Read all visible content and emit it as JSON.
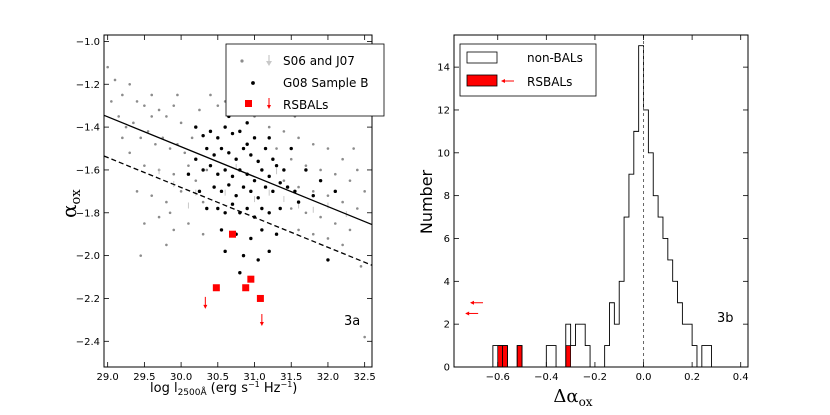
{
  "chart_data": [
    {
      "type": "scatter",
      "panel_label": "3a",
      "xlabel": "log l",
      "xlabel_sub": "2500Å",
      "xlabel_units": "(erg s",
      "xlabel_units_exp1": "−1",
      "xlabel_units_mid": " Hz",
      "xlabel_units_exp2": "−1",
      "xlabel_units_end": ")",
      "ylabel": "α",
      "ylabel_sub": "ox",
      "xlim": [
        28.95,
        32.6
      ],
      "ylim": [
        -2.52,
        -0.97
      ],
      "xticks": [
        "29.0",
        "29.5",
        "30.0",
        "30.5",
        "31.0",
        "31.5",
        "32.0",
        "32.5"
      ],
      "xtick_values": [
        29.0,
        29.5,
        30.0,
        30.5,
        31.0,
        31.5,
        32.0,
        32.5
      ],
      "yticks": [
        "−1.0",
        "−1.2",
        "−1.4",
        "−1.6",
        "−1.8",
        "−2.0",
        "−2.2",
        "−2.4"
      ],
      "ytick_values": [
        -1.0,
        -1.2,
        -1.4,
        -1.6,
        -1.8,
        -2.0,
        -2.2,
        -2.4
      ],
      "legend": [
        {
          "label": "S06 and J07",
          "marker": "gray-dot-with-arrow"
        },
        {
          "label": "G08 Sample B",
          "marker": "black-dot"
        },
        {
          "label": "RSBALs",
          "marker": "red-square-with-arrow"
        }
      ],
      "lines": [
        {
          "style": "solid",
          "x": [
            28.95,
            32.6
          ],
          "y": [
            -1.345,
            -1.855
          ]
        },
        {
          "style": "dashed",
          "x": [
            28.95,
            32.6
          ],
          "y": [
            -1.535,
            -2.045
          ]
        }
      ],
      "rsbals": [
        {
          "x": 30.7,
          "y": -1.9
        },
        {
          "x": 30.48,
          "y": -2.15
        },
        {
          "x": 30.88,
          "y": -2.15
        },
        {
          "x": 30.95,
          "y": -2.11
        },
        {
          "x": 31.08,
          "y": -2.2
        }
      ],
      "rsbal_upper_limits": [
        {
          "x": 30.33,
          "y": -2.23
        },
        {
          "x": 31.1,
          "y": -2.31
        }
      ],
      "g08_points": [
        [
          30.2,
          -1.4
        ],
        [
          30.3,
          -1.44
        ],
        [
          30.4,
          -1.42
        ],
        [
          30.5,
          -1.45
        ],
        [
          30.6,
          -1.4
        ],
        [
          30.7,
          -1.43
        ],
        [
          30.8,
          -1.42
        ],
        [
          30.9,
          -1.48
        ],
        [
          31.0,
          -1.45
        ],
        [
          30.35,
          -1.5
        ],
        [
          30.45,
          -1.53
        ],
        [
          30.55,
          -1.5
        ],
        [
          30.65,
          -1.52
        ],
        [
          30.75,
          -1.55
        ],
        [
          30.85,
          -1.5
        ],
        [
          30.95,
          -1.53
        ],
        [
          31.05,
          -1.56
        ],
        [
          31.15,
          -1.5
        ],
        [
          31.25,
          -1.55
        ],
        [
          30.3,
          -1.6
        ],
        [
          30.4,
          -1.58
        ],
        [
          30.5,
          -1.62
        ],
        [
          30.6,
          -1.6
        ],
        [
          30.7,
          -1.63
        ],
        [
          30.8,
          -1.6
        ],
        [
          30.9,
          -1.62
        ],
        [
          31.0,
          -1.65
        ],
        [
          31.1,
          -1.6
        ],
        [
          31.2,
          -1.63
        ],
        [
          31.3,
          -1.58
        ],
        [
          31.4,
          -1.6
        ],
        [
          30.45,
          -1.68
        ],
        [
          30.55,
          -1.7
        ],
        [
          30.65,
          -1.67
        ],
        [
          30.75,
          -1.72
        ],
        [
          30.85,
          -1.68
        ],
        [
          30.95,
          -1.7
        ],
        [
          31.05,
          -1.73
        ],
        [
          31.15,
          -1.68
        ],
        [
          31.25,
          -1.7
        ],
        [
          31.35,
          -1.66
        ],
        [
          31.45,
          -1.68
        ],
        [
          31.55,
          -1.7
        ],
        [
          30.5,
          -1.78
        ],
        [
          30.6,
          -1.8
        ],
        [
          30.7,
          -1.76
        ],
        [
          30.8,
          -1.8
        ],
        [
          30.9,
          -1.78
        ],
        [
          31.0,
          -1.82
        ],
        [
          31.1,
          -1.78
        ],
        [
          31.2,
          -1.8
        ],
        [
          31.6,
          -1.75
        ],
        [
          30.55,
          -1.88
        ],
        [
          30.75,
          -1.9
        ],
        [
          30.95,
          -1.92
        ],
        [
          31.1,
          -1.88
        ],
        [
          31.3,
          -1.9
        ],
        [
          30.6,
          -1.98
        ],
        [
          30.85,
          -2.0
        ],
        [
          31.05,
          -2.02
        ],
        [
          31.2,
          -1.98
        ],
        [
          30.8,
          -2.08
        ],
        [
          30.2,
          -1.55
        ],
        [
          30.1,
          -1.62
        ],
        [
          30.25,
          -1.7
        ],
        [
          31.7,
          -1.6
        ],
        [
          31.8,
          -1.72
        ],
        [
          31.9,
          -1.65
        ],
        [
          32.1,
          -1.7
        ],
        [
          31.5,
          -1.5
        ],
        [
          30.65,
          -1.35
        ],
        [
          30.9,
          -1.38
        ],
        [
          31.2,
          -1.45
        ],
        [
          31.35,
          -1.78
        ],
        [
          30.35,
          -1.78
        ],
        [
          32.0,
          -2.02
        ]
      ],
      "s06_points": [
        [
          29.0,
          -1.12
        ],
        [
          29.1,
          -1.18
        ],
        [
          29.2,
          -1.25
        ],
        [
          29.3,
          -1.2
        ],
        [
          29.4,
          -1.28
        ],
        [
          29.5,
          -1.3
        ],
        [
          29.6,
          -1.25
        ],
        [
          29.7,
          -1.32
        ],
        [
          29.8,
          -1.35
        ],
        [
          29.9,
          -1.3
        ],
        [
          30.0,
          -1.38
        ],
        [
          29.15,
          -1.35
        ],
        [
          29.25,
          -1.4
        ],
        [
          29.35,
          -1.38
        ],
        [
          29.45,
          -1.45
        ],
        [
          29.55,
          -1.42
        ],
        [
          29.65,
          -1.48
        ],
        [
          29.75,
          -1.45
        ],
        [
          29.85,
          -1.5
        ],
        [
          29.95,
          -1.48
        ],
        [
          30.05,
          -1.52
        ],
        [
          30.15,
          -1.45
        ],
        [
          29.3,
          -1.52
        ],
        [
          29.5,
          -1.58
        ],
        [
          29.7,
          -1.6
        ],
        [
          29.9,
          -1.62
        ],
        [
          30.1,
          -1.58
        ],
        [
          30.2,
          -1.65
        ],
        [
          29.4,
          -1.7
        ],
        [
          29.6,
          -1.72
        ],
        [
          29.8,
          -1.75
        ],
        [
          30.0,
          -1.7
        ],
        [
          30.3,
          -1.75
        ],
        [
          29.5,
          -1.85
        ],
        [
          29.7,
          -1.82
        ],
        [
          29.9,
          -1.88
        ],
        [
          30.1,
          -1.85
        ],
        [
          30.3,
          -1.9
        ],
        [
          29.45,
          -2.0
        ],
        [
          29.8,
          -1.95
        ],
        [
          30.4,
          -1.25
        ],
        [
          30.5,
          -1.3
        ],
        [
          30.6,
          -1.28
        ],
        [
          30.8,
          -1.3
        ],
        [
          31.0,
          -1.35
        ],
        [
          31.2,
          -1.4
        ],
        [
          31.4,
          -1.42
        ],
        [
          31.6,
          -1.45
        ],
        [
          31.8,
          -1.48
        ],
        [
          32.0,
          -1.5
        ],
        [
          32.2,
          -1.55
        ],
        [
          32.4,
          -1.6
        ],
        [
          31.3,
          -1.5
        ],
        [
          31.5,
          -1.55
        ],
        [
          31.7,
          -1.58
        ],
        [
          31.9,
          -1.6
        ],
        [
          32.1,
          -1.62
        ],
        [
          32.3,
          -1.65
        ],
        [
          32.5,
          -1.7
        ],
        [
          31.4,
          -1.65
        ],
        [
          31.6,
          -1.68
        ],
        [
          31.8,
          -1.7
        ],
        [
          32.0,
          -1.72
        ],
        [
          32.2,
          -1.75
        ],
        [
          32.4,
          -1.78
        ],
        [
          31.5,
          -1.78
        ],
        [
          31.7,
          -1.8
        ],
        [
          31.9,
          -1.82
        ],
        [
          32.1,
          -1.85
        ],
        [
          32.3,
          -1.88
        ],
        [
          31.6,
          -1.88
        ],
        [
          31.8,
          -1.9
        ],
        [
          32.0,
          -1.92
        ],
        [
          32.2,
          -1.95
        ],
        [
          29.05,
          -1.28
        ],
        [
          29.2,
          -1.45
        ],
        [
          29.6,
          -1.35
        ],
        [
          29.95,
          -1.25
        ],
        [
          30.25,
          -1.32
        ],
        [
          31.1,
          -1.25
        ],
        [
          31.55,
          -1.35
        ],
        [
          32.35,
          -1.5
        ],
        [
          32.45,
          -2.05
        ],
        [
          32.5,
          -2.38
        ],
        [
          29.85,
          -1.8
        ],
        [
          30.35,
          -1.6
        ]
      ],
      "s06_upper_limits": [
        [
          29.9,
          -1.68
        ],
        [
          30.2,
          -1.72
        ],
        [
          30.6,
          -1.72
        ],
        [
          31.0,
          -1.75
        ],
        [
          31.2,
          -1.72
        ],
        [
          31.4,
          -1.75
        ],
        [
          31.6,
          -1.78
        ],
        [
          31.8,
          -1.8
        ],
        [
          30.1,
          -1.78
        ],
        [
          29.7,
          -1.62
        ],
        [
          30.75,
          -1.6
        ],
        [
          31.3,
          -1.62
        ],
        [
          32.0,
          -1.78
        ],
        [
          32.25,
          -1.82
        ]
      ]
    },
    {
      "type": "histogram",
      "panel_label": "3b",
      "xlabel": "Δα",
      "xlabel_sub": "ox",
      "ylabel": "Number",
      "xlim": [
        -0.78,
        0.43
      ],
      "ylim": [
        0,
        15.5
      ],
      "xticks": [
        "−0.6",
        "−0.4",
        "−0.2",
        "0.0",
        "0.2",
        "0.4"
      ],
      "xtick_values": [
        -0.6,
        -0.4,
        -0.2,
        0.0,
        0.2,
        0.4
      ],
      "yticks": [
        "0",
        "2",
        "4",
        "6",
        "8",
        "10",
        "12",
        "14"
      ],
      "ytick_values": [
        0,
        2,
        4,
        6,
        8,
        10,
        12,
        14
      ],
      "legend": [
        {
          "label": "non-BALs",
          "marker": "open-box"
        },
        {
          "label": "RSBALs",
          "marker": "red-box-with-arrow"
        }
      ],
      "bin_width": 0.02,
      "nonbal_bins": [
        {
          "left": -0.62,
          "count": 1
        },
        {
          "left": -0.6,
          "count": 1
        },
        {
          "left": -0.58,
          "count": 1
        },
        {
          "left": -0.52,
          "count": 1
        },
        {
          "left": -0.4,
          "count": 1
        },
        {
          "left": -0.38,
          "count": 1
        },
        {
          "left": -0.32,
          "count": 2
        },
        {
          "left": -0.3,
          "count": 1
        },
        {
          "left": -0.28,
          "count": 2
        },
        {
          "left": -0.26,
          "count": 2
        },
        {
          "left": -0.24,
          "count": 1
        },
        {
          "left": -0.16,
          "count": 1
        },
        {
          "left": -0.14,
          "count": 3
        },
        {
          "left": -0.12,
          "count": 2
        },
        {
          "left": -0.1,
          "count": 4
        },
        {
          "left": -0.08,
          "count": 7
        },
        {
          "left": -0.06,
          "count": 9
        },
        {
          "left": -0.04,
          "count": 11
        },
        {
          "left": -0.02,
          "count": 15
        },
        {
          "left": 0.0,
          "count": 12
        },
        {
          "left": 0.02,
          "count": 10
        },
        {
          "left": 0.04,
          "count": 8
        },
        {
          "left": 0.06,
          "count": 7
        },
        {
          "left": 0.08,
          "count": 6
        },
        {
          "left": 0.1,
          "count": 5
        },
        {
          "left": 0.12,
          "count": 4
        },
        {
          "left": 0.14,
          "count": 3
        },
        {
          "left": 0.16,
          "count": 2
        },
        {
          "left": 0.18,
          "count": 2
        },
        {
          "left": 0.2,
          "count": 1
        },
        {
          "left": 0.22,
          "count": 0
        },
        {
          "left": 0.24,
          "count": 1
        },
        {
          "left": 0.26,
          "count": 1
        }
      ],
      "rsbal_bins": [
        {
          "left": -0.6,
          "count": 1
        },
        {
          "left": -0.58,
          "count": 1
        },
        {
          "left": -0.52,
          "count": 1
        },
        {
          "left": -0.32,
          "count": 1
        }
      ],
      "rsbal_lower_limits": [
        {
          "x": -0.71,
          "y": 3.0
        },
        {
          "x": -0.73,
          "y": 2.5
        }
      ],
      "vline": {
        "x": 0.0,
        "style": "dashed"
      }
    }
  ],
  "colors": {
    "rsbal": "#ff0000",
    "g08": "#000000",
    "s06": "#8c8c8c",
    "s06_arrow": "#c8c8c8"
  }
}
